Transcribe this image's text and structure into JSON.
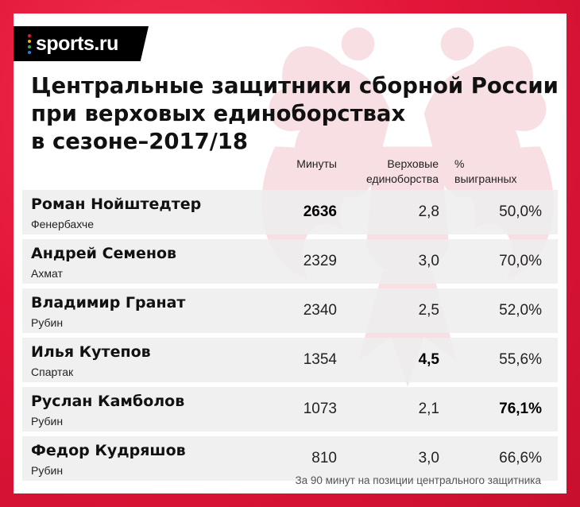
{
  "brand": {
    "logo_text": "sports.ru",
    "logo_dots": [
      "#e8173a",
      "#f7b500",
      "#2fb24c",
      "#2a7de1"
    ]
  },
  "title_lines": [
    "Центральные защитники сборной России",
    "при верховых единоборствах",
    "в сезоне–2017/18"
  ],
  "columns": {
    "minutes": "Минуты",
    "aerial_line1": "Верховые",
    "aerial_line2": "единоборства",
    "pct_line1": "%",
    "pct_line2": "выигранных"
  },
  "players": [
    {
      "name": "Роман Нойштедтер",
      "club": "Фенербахче",
      "minutes": "2636",
      "aerials": "2,8",
      "won_pct": "50,0%",
      "bold": "minutes"
    },
    {
      "name": "Андрей Семенов",
      "club": "Ахмат",
      "minutes": "2329",
      "aerials": "3,0",
      "won_pct": "70,0%",
      "bold": ""
    },
    {
      "name": "Владимир Гранат",
      "club": "Рубин",
      "minutes": "2340",
      "aerials": "2,5",
      "won_pct": "52,0%",
      "bold": ""
    },
    {
      "name": "Илья Кутепов",
      "club": "Спартак",
      "minutes": "1354",
      "aerials": "4,5",
      "won_pct": "55,6%",
      "bold": "aerials"
    },
    {
      "name": "Руслан Камболов",
      "club": "Рубин",
      "minutes": "1073",
      "aerials": "2,1",
      "won_pct": "76,1%",
      "bold": "won_pct"
    },
    {
      "name": "Федор Кудряшов",
      "club": "Рубин",
      "minutes": "810",
      "aerials": "3,0",
      "won_pct": "66,6%",
      "bold": ""
    }
  ],
  "footnote": "За 90 минут на позиции центрального защитника",
  "colors": {
    "frame": "#e8173a",
    "row_bg": "#eeeeee",
    "logo_bg": "#000000"
  }
}
